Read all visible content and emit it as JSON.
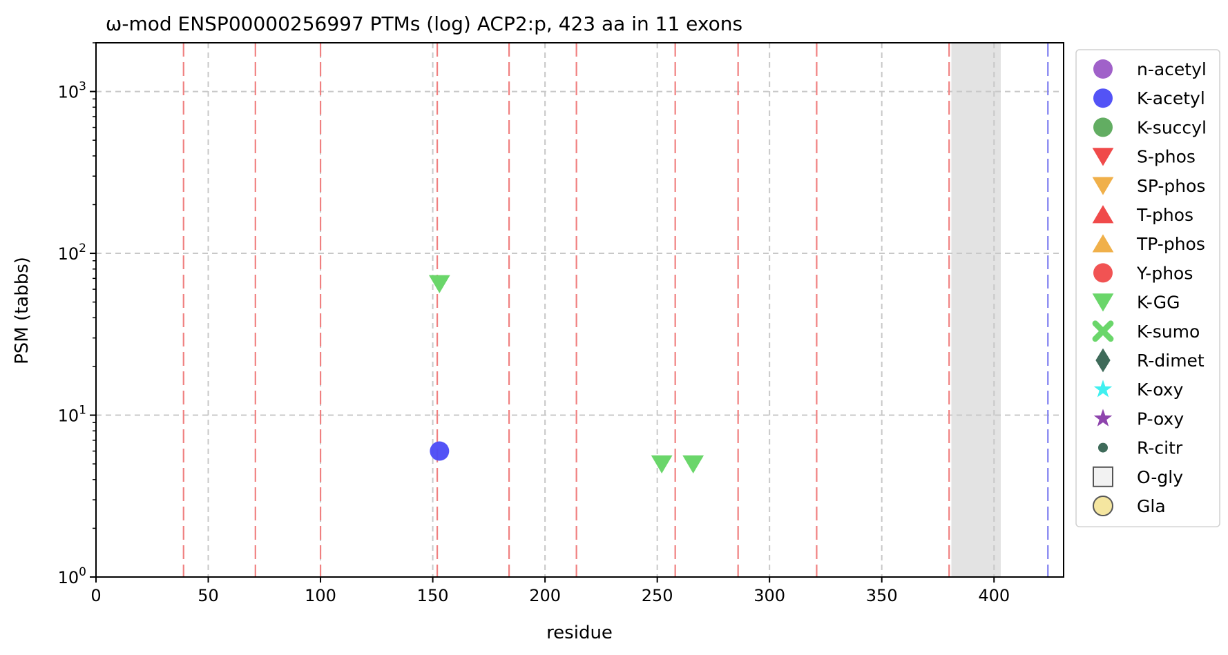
{
  "chart_data": {
    "type": "scatter",
    "title": "ω-mod ENSP00000256997 PTMs (log) ACP2:p, 423 aa in 11 exons",
    "xlabel": "residue",
    "ylabel": "PSM (tabbs)",
    "xlim": [
      0,
      431
    ],
    "ylim": [
      1,
      2000
    ],
    "yscale": "log",
    "grid": true,
    "legend_position": "right-outside",
    "x_ticks": [
      0,
      50,
      100,
      150,
      200,
      250,
      300,
      350,
      400
    ],
    "y_ticks": [
      {
        "value": 1,
        "label_base": "10",
        "label_exp": "0"
      },
      {
        "value": 10,
        "label_base": "10",
        "label_exp": "1"
      },
      {
        "value": 100,
        "label_base": "10",
        "label_exp": "2"
      },
      {
        "value": 1000,
        "label_base": "10",
        "label_exp": "3"
      }
    ],
    "exon_boundaries": [
      39,
      71,
      100,
      152,
      184,
      214,
      258,
      286,
      321,
      380
    ],
    "exon_line_color": "#f08080",
    "protein_end": 424,
    "protein_end_color": "#8080f0",
    "shaded_region": [
      381,
      403
    ],
    "shaded_color": "#e3e3e3",
    "points": [
      {
        "series": "K-acetyl",
        "x": 153,
        "y": 6
      },
      {
        "series": "K-GG",
        "x": 153,
        "y": 65
      },
      {
        "series": "K-GG",
        "x": 252,
        "y": 5
      },
      {
        "series": "K-GG",
        "x": 266,
        "y": 5
      }
    ],
    "series": [
      {
        "name": "n-acetyl",
        "marker": "circle",
        "color": "#9b59c6"
      },
      {
        "name": "K-acetyl",
        "marker": "circle",
        "color": "#4a4af5"
      },
      {
        "name": "K-succyl",
        "marker": "circle",
        "color": "#5aa95a"
      },
      {
        "name": "S-phos",
        "marker": "triangle-down",
        "color": "#f04a4a"
      },
      {
        "name": "SP-phos",
        "marker": "triangle-down",
        "color": "#f0b04a"
      },
      {
        "name": "T-phos",
        "marker": "triangle-up",
        "color": "#f04a4a"
      },
      {
        "name": "TP-phos",
        "marker": "triangle-up",
        "color": "#f0b04a"
      },
      {
        "name": "Y-phos",
        "marker": "circle",
        "color": "#f04a4a"
      },
      {
        "name": "K-GG",
        "marker": "triangle-down",
        "color": "#6ad66a"
      },
      {
        "name": "K-sumo",
        "marker": "x",
        "color": "#6ad66a"
      },
      {
        "name": "R-dimet",
        "marker": "diamond",
        "color": "#3f6b5a"
      },
      {
        "name": "K-oxy",
        "marker": "star",
        "color": "#3ff0f0"
      },
      {
        "name": "P-oxy",
        "marker": "star",
        "color": "#8e44ad"
      },
      {
        "name": "R-citr",
        "marker": "small-circle",
        "color": "#3f6b5a"
      },
      {
        "name": "O-gly",
        "marker": "square-open",
        "color": "#f2f2f2"
      },
      {
        "name": "Gla",
        "marker": "circle-open",
        "color": "#f5e6a0"
      }
    ]
  }
}
